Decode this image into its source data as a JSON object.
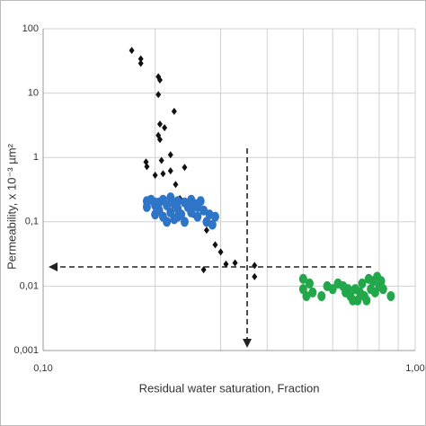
{
  "chart_data": {
    "type": "scatter",
    "xlabel": "Residual water saturation, Fraction",
    "ylabel": "Permeability, x 10⁻³ µm²",
    "xscale": "log",
    "yscale": "log",
    "xlim": [
      0.1,
      1.0
    ],
    "ylim": [
      0.001,
      100
    ],
    "xticks": [
      {
        "value": 0.1,
        "label": "0,10"
      },
      {
        "value": 1.0,
        "label": "1,00"
      }
    ],
    "xgrid_minor": [
      0.2,
      0.3,
      0.4,
      0.5,
      0.6,
      0.7,
      0.8,
      0.9
    ],
    "yticks": [
      {
        "value": 0.001,
        "label": "0,001"
      },
      {
        "value": 0.01,
        "label": "0,01"
      },
      {
        "value": 0.1,
        "label": "0,1"
      },
      1,
      10,
      100
    ],
    "grid": true,
    "series": [
      {
        "marker": "diamond",
        "color": "#111111",
        "x": [
          0.173,
          0.183,
          0.183,
          0.204,
          0.206,
          0.204,
          0.206,
          0.204,
          0.206,
          0.225,
          0.212,
          0.189,
          0.19,
          0.208,
          0.22,
          0.24,
          0.22,
          0.227,
          0.21,
          0.233,
          0.253,
          0.275,
          0.29,
          0.3,
          0.27,
          0.31,
          0.328,
          0.37,
          0.37,
          0.2
        ],
        "values": [
          46,
          34,
          29,
          18,
          16,
          9.5,
          3.3,
          2.2,
          1.9,
          5.2,
          2.9,
          0.85,
          0.72,
          0.9,
          1.1,
          0.7,
          0.62,
          0.38,
          0.56,
          0.23,
          0.13,
          0.074,
          0.044,
          0.034,
          0.018,
          0.022,
          0.023,
          0.021,
          0.014,
          0.53
        ]
      },
      {
        "marker": "circle",
        "color": "#2e75c8",
        "x": [
          0.19,
          0.19,
          0.195,
          0.2,
          0.2,
          0.205,
          0.205,
          0.21,
          0.21,
          0.215,
          0.22,
          0.22,
          0.225,
          0.225,
          0.23,
          0.23,
          0.235,
          0.24,
          0.24,
          0.245,
          0.25,
          0.25,
          0.255,
          0.26,
          0.26,
          0.265,
          0.27,
          0.275,
          0.28,
          0.285,
          0.29,
          0.215,
          0.2,
          0.23
        ],
        "values": [
          0.21,
          0.17,
          0.22,
          0.18,
          0.13,
          0.2,
          0.15,
          0.12,
          0.22,
          0.18,
          0.14,
          0.24,
          0.19,
          0.11,
          0.16,
          0.21,
          0.13,
          0.2,
          0.1,
          0.17,
          0.22,
          0.14,
          0.19,
          0.12,
          0.17,
          0.21,
          0.15,
          0.1,
          0.13,
          0.09,
          0.12,
          0.1,
          0.2,
          0.12
        ]
      },
      {
        "marker": "circle",
        "color": "#22a84a",
        "x": [
          0.5,
          0.5,
          0.51,
          0.52,
          0.53,
          0.56,
          0.58,
          0.6,
          0.62,
          0.64,
          0.65,
          0.67,
          0.68,
          0.69,
          0.7,
          0.71,
          0.72,
          0.73,
          0.75,
          0.76,
          0.77,
          0.78,
          0.79,
          0.8,
          0.81,
          0.82,
          0.86,
          0.74,
          0.66
        ],
        "values": [
          0.013,
          0.009,
          0.007,
          0.011,
          0.008,
          0.007,
          0.01,
          0.009,
          0.011,
          0.01,
          0.008,
          0.007,
          0.006,
          0.009,
          0.006,
          0.008,
          0.011,
          0.007,
          0.013,
          0.009,
          0.012,
          0.008,
          0.014,
          0.01,
          0.012,
          0.009,
          0.007,
          0.006,
          0.009
        ]
      }
    ]
  }
}
